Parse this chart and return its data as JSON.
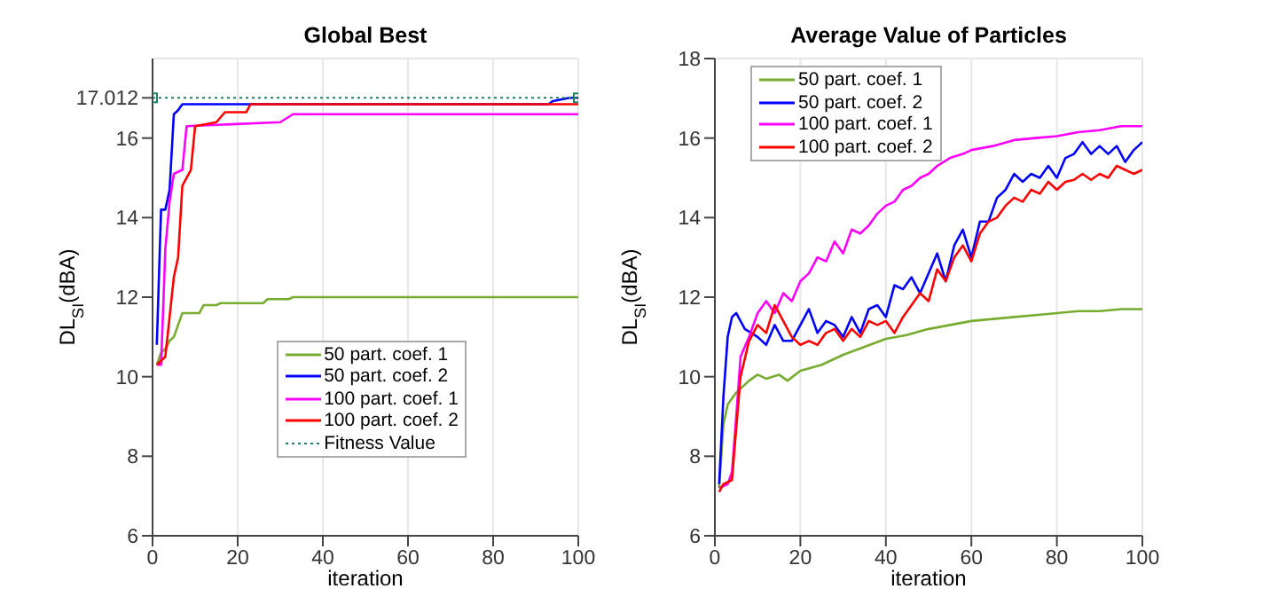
{
  "chart_data": [
    {
      "type": "line",
      "title": "Global Best",
      "xlabel": "iteration",
      "ylabel": "DL$_{SI}$(dBA)",
      "xlim": [
        0,
        100
      ],
      "xticks": [
        0,
        20,
        40,
        60,
        80,
        100
      ],
      "ylim": [
        6,
        18
      ],
      "yticks": [
        6,
        8,
        10,
        12,
        14,
        16,
        {
          "value": 17.012,
          "label": "17.012"
        }
      ],
      "grid": true,
      "legend": "bottom",
      "series": [
        {
          "name": "50 part. coef. 1",
          "color": "#77ac30",
          "x": [
            1,
            2,
            3,
            4,
            5,
            6,
            7,
            11,
            12,
            15,
            16,
            26,
            27,
            32,
            33,
            100
          ],
          "values": [
            10.3,
            10.6,
            10.7,
            10.9,
            11.0,
            11.3,
            11.6,
            11.6,
            11.8,
            11.8,
            11.85,
            11.85,
            11.95,
            11.95,
            12.0,
            12.0
          ]
        },
        {
          "name": "50 part. coef. 2",
          "color": "#0000ff",
          "x": [
            1,
            2,
            3,
            4,
            5,
            6,
            7,
            93,
            94,
            98,
            100
          ],
          "values": [
            10.8,
            14.2,
            14.2,
            14.7,
            16.6,
            16.7,
            16.85,
            16.85,
            16.93,
            17.012,
            17.012
          ]
        },
        {
          "name": "100 part. coef. 1",
          "color": "#ff00ff",
          "x": [
            1,
            2,
            3,
            4,
            5,
            7,
            8,
            30,
            33,
            100
          ],
          "values": [
            10.3,
            10.3,
            13.2,
            14.4,
            15.1,
            15.2,
            16.3,
            16.4,
            16.6,
            16.6
          ]
        },
        {
          "name": "100 part. coef. 2",
          "color": "#ff0000",
          "x": [
            1,
            3,
            4,
            5,
            6,
            7,
            9,
            10,
            15,
            17,
            22,
            23,
            100
          ],
          "values": [
            10.3,
            10.5,
            11.5,
            12.5,
            13.0,
            14.8,
            15.2,
            16.3,
            16.4,
            16.65,
            16.65,
            16.85,
            16.85
          ]
        },
        {
          "name": "Fitness Value",
          "color": "#208060",
          "line_style": "dotted",
          "marker": "square",
          "x": [
            0,
            100
          ],
          "values": [
            17.012,
            17.012
          ]
        }
      ]
    },
    {
      "type": "line",
      "title": "Average Value of Particles",
      "xlabel": "iteration",
      "ylabel": "DL$_{SI}$(dBA)",
      "xlim": [
        0,
        100
      ],
      "xticks": [
        0,
        20,
        40,
        60,
        80,
        100
      ],
      "ylim": [
        6,
        18
      ],
      "yticks": [
        6,
        8,
        10,
        12,
        14,
        16,
        18
      ],
      "grid": true,
      "legend": "top left",
      "series": [
        {
          "name": "50 part. coef. 1",
          "color": "#77ac30",
          "x": [
            1,
            2,
            3,
            5,
            8,
            10,
            12,
            15,
            17,
            20,
            25,
            30,
            35,
            40,
            45,
            50,
            55,
            60,
            65,
            70,
            75,
            80,
            85,
            90,
            95,
            100
          ],
          "values": [
            7.2,
            8.8,
            9.3,
            9.6,
            9.9,
            10.05,
            9.95,
            10.05,
            9.9,
            10.15,
            10.3,
            10.55,
            10.75,
            10.95,
            11.05,
            11.2,
            11.3,
            11.4,
            11.45,
            11.5,
            11.55,
            11.6,
            11.65,
            11.65,
            11.7,
            11.7
          ]
        },
        {
          "name": "50 part. coef. 2",
          "color": "#0000ff",
          "x": [
            1,
            2,
            3,
            4,
            5,
            7,
            10,
            12,
            14,
            16,
            18,
            20,
            22,
            24,
            26,
            28,
            30,
            32,
            34,
            36,
            38,
            40,
            42,
            44,
            46,
            48,
            50,
            52,
            54,
            56,
            58,
            60,
            62,
            64,
            66,
            68,
            70,
            72,
            74,
            76,
            78,
            80,
            82,
            84,
            86,
            88,
            90,
            92,
            94,
            96,
            98,
            100
          ],
          "values": [
            7.3,
            9.5,
            11.0,
            11.5,
            11.6,
            11.2,
            11.0,
            10.8,
            11.3,
            10.9,
            10.9,
            11.3,
            11.7,
            11.1,
            11.4,
            11.3,
            11.0,
            11.5,
            11.1,
            11.7,
            11.8,
            11.5,
            12.3,
            12.2,
            12.5,
            12.1,
            12.6,
            13.1,
            12.4,
            13.3,
            13.7,
            13.0,
            13.9,
            13.9,
            14.5,
            14.7,
            15.1,
            14.9,
            15.1,
            15.0,
            15.3,
            15.0,
            15.5,
            15.6,
            15.9,
            15.6,
            15.8,
            15.6,
            15.8,
            15.4,
            15.7,
            15.9
          ]
        },
        {
          "name": "100 part. coef. 1",
          "color": "#ff00ff",
          "x": [
            1,
            3,
            4,
            5,
            6,
            8,
            10,
            12,
            14,
            16,
            18,
            20,
            22,
            24,
            26,
            28,
            30,
            32,
            34,
            36,
            38,
            40,
            42,
            44,
            46,
            48,
            50,
            52,
            55,
            58,
            60,
            65,
            70,
            75,
            80,
            85,
            90,
            95,
            100
          ],
          "values": [
            7.2,
            7.3,
            7.6,
            9.0,
            10.5,
            11.0,
            11.6,
            11.9,
            11.6,
            12.1,
            11.9,
            12.4,
            12.6,
            13.0,
            12.9,
            13.4,
            13.1,
            13.7,
            13.6,
            13.8,
            14.1,
            14.3,
            14.4,
            14.7,
            14.8,
            15.0,
            15.1,
            15.3,
            15.5,
            15.6,
            15.7,
            15.8,
            15.95,
            16.0,
            16.05,
            16.15,
            16.2,
            16.3,
            16.3
          ]
        },
        {
          "name": "100 part. coef. 2",
          "color": "#ff0000",
          "x": [
            1,
            2,
            4,
            6,
            8,
            10,
            12,
            14,
            16,
            18,
            20,
            22,
            24,
            26,
            28,
            30,
            32,
            34,
            36,
            38,
            40,
            42,
            44,
            46,
            48,
            50,
            52,
            54,
            56,
            58,
            60,
            62,
            64,
            66,
            68,
            70,
            72,
            74,
            76,
            78,
            80,
            82,
            84,
            86,
            88,
            90,
            92,
            94,
            96,
            98,
            100
          ],
          "values": [
            7.1,
            7.3,
            7.4,
            10.0,
            10.9,
            11.3,
            11.1,
            11.8,
            11.4,
            11.0,
            10.8,
            10.9,
            10.8,
            11.1,
            11.2,
            10.9,
            11.2,
            11.0,
            11.4,
            11.3,
            11.4,
            11.1,
            11.5,
            11.8,
            12.1,
            11.9,
            12.7,
            12.4,
            13.0,
            13.3,
            12.9,
            13.6,
            13.9,
            14.0,
            14.3,
            14.5,
            14.4,
            14.7,
            14.6,
            14.9,
            14.7,
            14.9,
            14.95,
            15.1,
            14.95,
            15.1,
            15.0,
            15.3,
            15.2,
            15.1,
            15.2
          ]
        }
      ]
    }
  ]
}
